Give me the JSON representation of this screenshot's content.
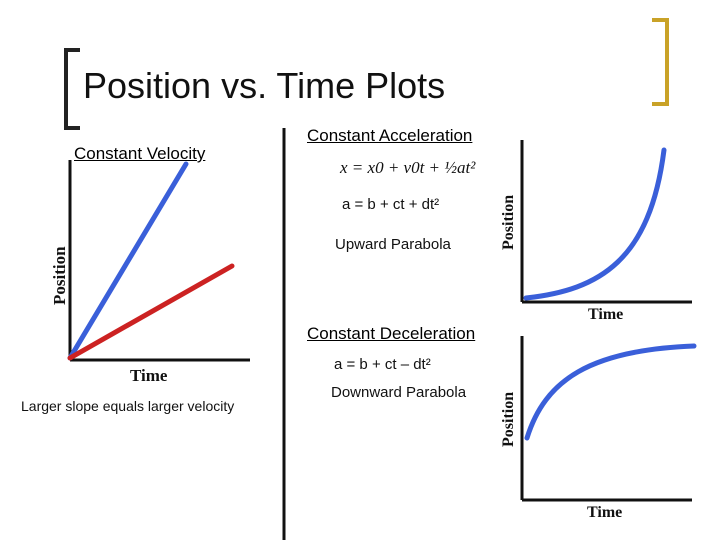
{
  "slide": {
    "title": "Position vs. Time Plots",
    "accent_color": "#c9a227",
    "bracket_color": "#222222"
  },
  "panel_velocity": {
    "heading": "Constant Velocity",
    "y_axis_label": "Position",
    "x_axis_label": "Time",
    "caption": "Larger slope equals larger velocity",
    "line_colors": [
      "#3a5fd9",
      "#cc2222"
    ]
  },
  "panel_acceleration": {
    "heading": "Constant Acceleration",
    "formula": "x = x0 + v0t + ½at²",
    "equation": "a = b + ct + dt²",
    "shape_label": "Upward Parabola",
    "y_axis_label": "Position",
    "x_axis_label": "Time",
    "curve_color": "#3a5fd9"
  },
  "panel_deceleration": {
    "heading": "Constant Deceleration",
    "equation": "a = b + ct – dt²",
    "shape_label": "Downward Parabola",
    "y_axis_label": "Position",
    "x_axis_label": "Time",
    "curve_color": "#3a5fd9"
  }
}
